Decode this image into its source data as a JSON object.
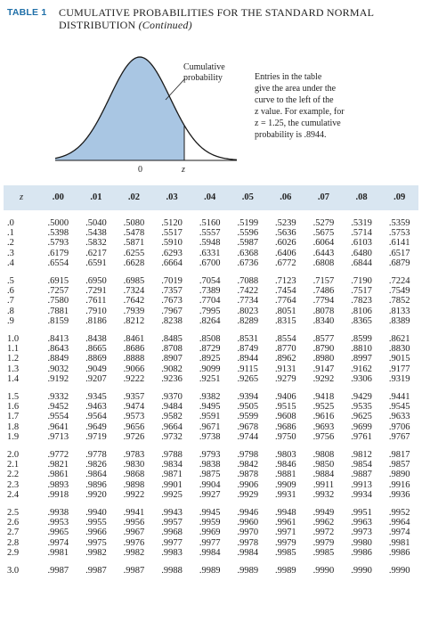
{
  "header": {
    "table_label": "TABLE 1",
    "title_line1": "CUMULATIVE PROBABILITIES FOR THE STANDARD NORMAL",
    "title_line2": "DISTRIBUTION",
    "title_suffix": "(Continued)"
  },
  "figure": {
    "cumulative_label_1": "Cumulative",
    "cumulative_label_2": "probability",
    "zero_label": "0",
    "z_label": "z",
    "shade_color": "#a9c6e3",
    "curve_color": "#1a1a1a"
  },
  "note": {
    "line1": "Entries in the table",
    "line2": "give the area under the",
    "line3": "curve to the left of the",
    "line4": "z value. For example, for",
    "line5": "z = 1.25, the cumulative",
    "line6": "probability is .8944."
  },
  "table": {
    "header_color": "#d9e6f1",
    "columns": [
      "z",
      ".00",
      ".01",
      ".02",
      ".03",
      ".04",
      ".05",
      ".06",
      ".07",
      ".08",
      ".09"
    ],
    "groups": [
      [
        [
          ".0",
          ".5000",
          ".5040",
          ".5080",
          ".5120",
          ".5160",
          ".5199",
          ".5239",
          ".5279",
          ".5319",
          ".5359"
        ],
        [
          ".1",
          ".5398",
          ".5438",
          ".5478",
          ".5517",
          ".5557",
          ".5596",
          ".5636",
          ".5675",
          ".5714",
          ".5753"
        ],
        [
          ".2",
          ".5793",
          ".5832",
          ".5871",
          ".5910",
          ".5948",
          ".5987",
          ".6026",
          ".6064",
          ".6103",
          ".6141"
        ],
        [
          ".3",
          ".6179",
          ".6217",
          ".6255",
          ".6293",
          ".6331",
          ".6368",
          ".6406",
          ".6443",
          ".6480",
          ".6517"
        ],
        [
          ".4",
          ".6554",
          ".6591",
          ".6628",
          ".6664",
          ".6700",
          ".6736",
          ".6772",
          ".6808",
          ".6844",
          ".6879"
        ]
      ],
      [
        [
          ".5",
          ".6915",
          ".6950",
          ".6985",
          ".7019",
          ".7054",
          ".7088",
          ".7123",
          ".7157",
          ".7190",
          ".7224"
        ],
        [
          ".6",
          ".7257",
          ".7291",
          ".7324",
          ".7357",
          ".7389",
          ".7422",
          ".7454",
          ".7486",
          ".7517",
          ".7549"
        ],
        [
          ".7",
          ".7580",
          ".7611",
          ".7642",
          ".7673",
          ".7704",
          ".7734",
          ".7764",
          ".7794",
          ".7823",
          ".7852"
        ],
        [
          ".8",
          ".7881",
          ".7910",
          ".7939",
          ".7967",
          ".7995",
          ".8023",
          ".8051",
          ".8078",
          ".8106",
          ".8133"
        ],
        [
          ".9",
          ".8159",
          ".8186",
          ".8212",
          ".8238",
          ".8264",
          ".8289",
          ".8315",
          ".8340",
          ".8365",
          ".8389"
        ]
      ],
      [
        [
          "1.0",
          ".8413",
          ".8438",
          ".8461",
          ".8485",
          ".8508",
          ".8531",
          ".8554",
          ".8577",
          ".8599",
          ".8621"
        ],
        [
          "1.1",
          ".8643",
          ".8665",
          ".8686",
          ".8708",
          ".8729",
          ".8749",
          ".8770",
          ".8790",
          ".8810",
          ".8830"
        ],
        [
          "1.2",
          ".8849",
          ".8869",
          ".8888",
          ".8907",
          ".8925",
          ".8944",
          ".8962",
          ".8980",
          ".8997",
          ".9015"
        ],
        [
          "1.3",
          ".9032",
          ".9049",
          ".9066",
          ".9082",
          ".9099",
          ".9115",
          ".9131",
          ".9147",
          ".9162",
          ".9177"
        ],
        [
          "1.4",
          ".9192",
          ".9207",
          ".9222",
          ".9236",
          ".9251",
          ".9265",
          ".9279",
          ".9292",
          ".9306",
          ".9319"
        ]
      ],
      [
        [
          "1.5",
          ".9332",
          ".9345",
          ".9357",
          ".9370",
          ".9382",
          ".9394",
          ".9406",
          ".9418",
          ".9429",
          ".9441"
        ],
        [
          "1.6",
          ".9452",
          ".9463",
          ".9474",
          ".9484",
          ".9495",
          ".9505",
          ".9515",
          ".9525",
          ".9535",
          ".9545"
        ],
        [
          "1.7",
          ".9554",
          ".9564",
          ".9573",
          ".9582",
          ".9591",
          ".9599",
          ".9608",
          ".9616",
          ".9625",
          ".9633"
        ],
        [
          "1.8",
          ".9641",
          ".9649",
          ".9656",
          ".9664",
          ".9671",
          ".9678",
          ".9686",
          ".9693",
          ".9699",
          ".9706"
        ],
        [
          "1.9",
          ".9713",
          ".9719",
          ".9726",
          ".9732",
          ".9738",
          ".9744",
          ".9750",
          ".9756",
          ".9761",
          ".9767"
        ]
      ],
      [
        [
          "2.0",
          ".9772",
          ".9778",
          ".9783",
          ".9788",
          ".9793",
          ".9798",
          ".9803",
          ".9808",
          ".9812",
          ".9817"
        ],
        [
          "2.1",
          ".9821",
          ".9826",
          ".9830",
          ".9834",
          ".9838",
          ".9842",
          ".9846",
          ".9850",
          ".9854",
          ".9857"
        ],
        [
          "2.2",
          ".9861",
          ".9864",
          ".9868",
          ".9871",
          ".9875",
          ".9878",
          ".9881",
          ".9884",
          ".9887",
          ".9890"
        ],
        [
          "2.3",
          ".9893",
          ".9896",
          ".9898",
          ".9901",
          ".9904",
          ".9906",
          ".9909",
          ".9911",
          ".9913",
          ".9916"
        ],
        [
          "2.4",
          ".9918",
          ".9920",
          ".9922",
          ".9925",
          ".9927",
          ".9929",
          ".9931",
          ".9932",
          ".9934",
          ".9936"
        ]
      ],
      [
        [
          "2.5",
          ".9938",
          ".9940",
          ".9941",
          ".9943",
          ".9945",
          ".9946",
          ".9948",
          ".9949",
          ".9951",
          ".9952"
        ],
        [
          "2.6",
          ".9953",
          ".9955",
          ".9956",
          ".9957",
          ".9959",
          ".9960",
          ".9961",
          ".9962",
          ".9963",
          ".9964"
        ],
        [
          "2.7",
          ".9965",
          ".9966",
          ".9967",
          ".9968",
          ".9969",
          ".9970",
          ".9971",
          ".9972",
          ".9973",
          ".9974"
        ],
        [
          "2.8",
          ".9974",
          ".9975",
          ".9976",
          ".9977",
          ".9977",
          ".9978",
          ".9979",
          ".9979",
          ".9980",
          ".9981"
        ],
        [
          "2.9",
          ".9981",
          ".9982",
          ".9982",
          ".9983",
          ".9984",
          ".9984",
          ".9985",
          ".9985",
          ".9986",
          ".9986"
        ]
      ],
      [
        [
          "3.0",
          ".9987",
          ".9987",
          ".9987",
          ".9988",
          ".9989",
          ".9989",
          ".9989",
          ".9990",
          ".9990",
          ".9990"
        ]
      ]
    ]
  }
}
